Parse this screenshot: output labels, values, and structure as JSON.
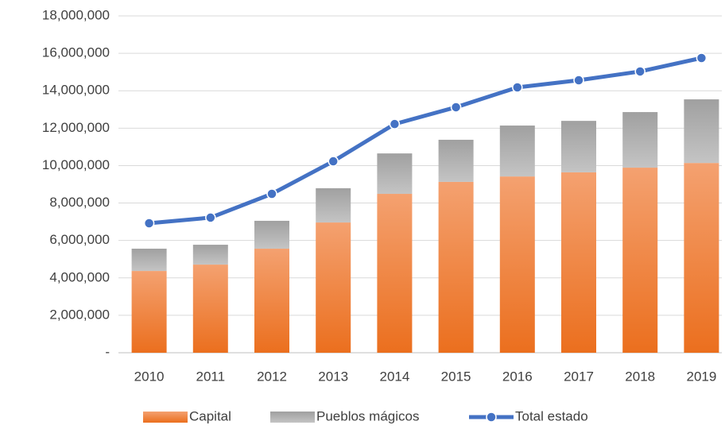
{
  "chart_data": {
    "type": "bar_line",
    "categories": [
      "2010",
      "2011",
      "2012",
      "2013",
      "2014",
      "2015",
      "2016",
      "2017",
      "2018",
      "2019"
    ],
    "series": [
      {
        "name": "Capital",
        "type": "bar",
        "color": "#ed7d31",
        "values": [
          4370000,
          4710000,
          5560000,
          6960000,
          8490000,
          9130000,
          9420000,
          9640000,
          9890000,
          10140000
        ]
      },
      {
        "name": "Pueblos mágicos",
        "type": "bar",
        "color": "#a5a5a5",
        "values": [
          1190000,
          1060000,
          1490000,
          1830000,
          2160000,
          2250000,
          2720000,
          2750000,
          2970000,
          3400000
        ]
      },
      {
        "name": "Total estado",
        "type": "line",
        "color": "#4472c4",
        "values": [
          6920000,
          7220000,
          8490000,
          10230000,
          12220000,
          13120000,
          14180000,
          14560000,
          15030000,
          15750000
        ]
      }
    ],
    "ylim": [
      0,
      18000000
    ],
    "yticks": [
      {
        "value": 0,
        "label": "-"
      },
      {
        "value": 2000000,
        "label": "2,000,000"
      },
      {
        "value": 4000000,
        "label": "4,000,000"
      },
      {
        "value": 6000000,
        "label": "6,000,000"
      },
      {
        "value": 8000000,
        "label": "8,000,000"
      },
      {
        "value": 10000000,
        "label": "10,000,000"
      },
      {
        "value": 12000000,
        "label": "12,000,000"
      },
      {
        "value": 14000000,
        "label": "14,000,000"
      },
      {
        "value": 16000000,
        "label": "16,000,000"
      },
      {
        "value": 18000000,
        "label": "18,000,000"
      }
    ],
    "grid": true,
    "legend": "bottom"
  }
}
